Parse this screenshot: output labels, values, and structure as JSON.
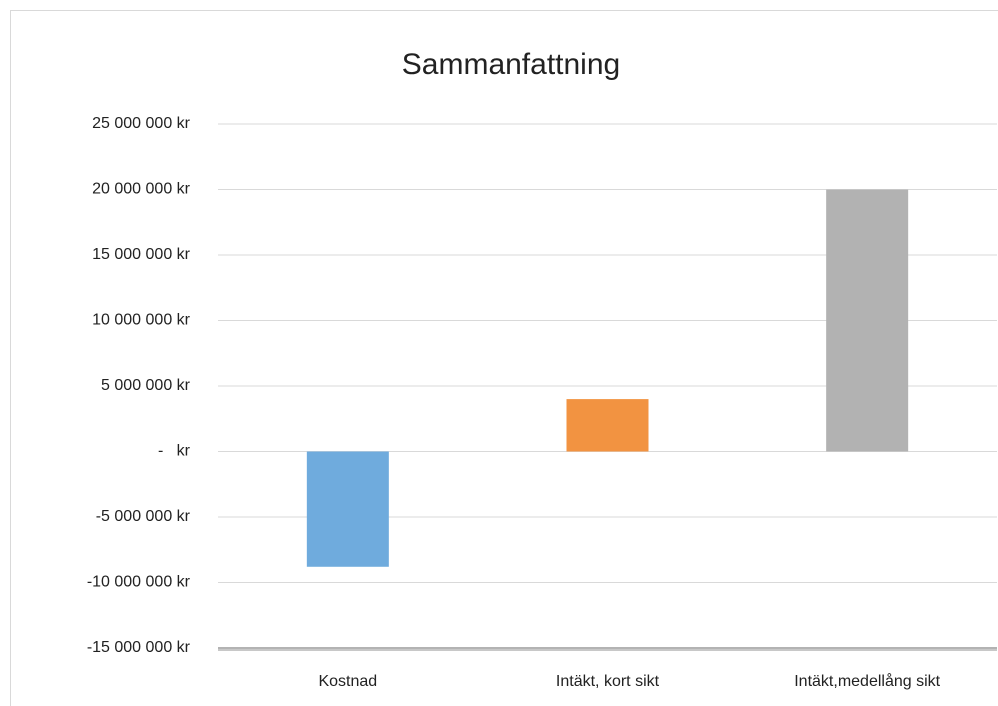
{
  "chart_data": {
    "type": "bar",
    "title": "Sammanfattning",
    "categories": [
      "Kostnad",
      "Intäkt, kort sikt",
      "Intäkt,medellång sikt"
    ],
    "values": [
      -8800000,
      4000000,
      20000000
    ],
    "colors": [
      "#6fabdd",
      "#f29341",
      "#b2b2b2"
    ],
    "ylim": [
      -15000000,
      25000000
    ],
    "yticks": [
      {
        "value": -15000000,
        "label": "-15 000 000 kr"
      },
      {
        "value": -10000000,
        "label": "-10 000 000 kr"
      },
      {
        "value": -5000000,
        "label": "-5 000 000 kr"
      },
      {
        "value": 0,
        "label": "-   kr"
      },
      {
        "value": 5000000,
        "label": "5 000 000 kr"
      },
      {
        "value": 10000000,
        "label": "10 000 000 kr"
      },
      {
        "value": 15000000,
        "label": "15 000 000 kr"
      },
      {
        "value": 20000000,
        "label": "20 000 000 kr"
      },
      {
        "value": 25000000,
        "label": "25 000 000 kr"
      }
    ],
    "grid": true
  }
}
